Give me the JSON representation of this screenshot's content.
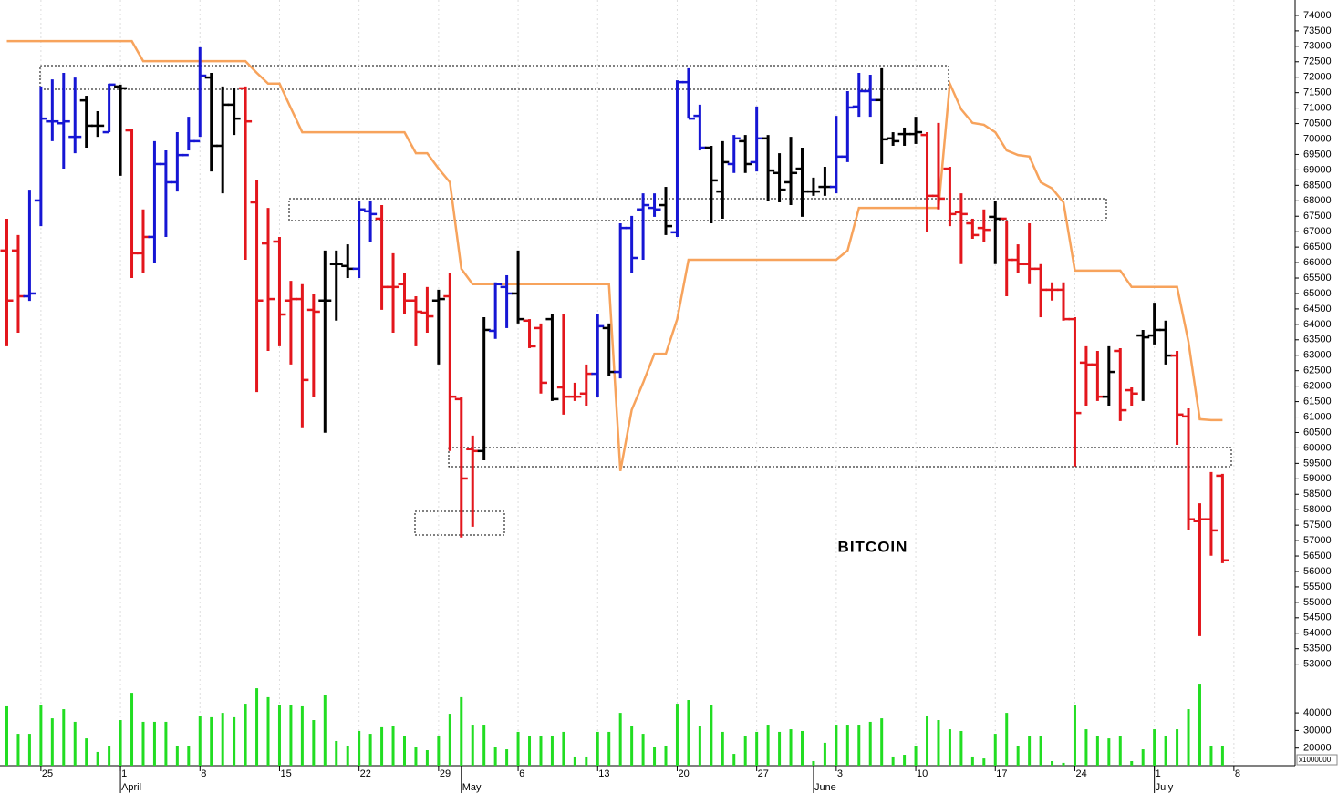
{
  "chart_data": {
    "type": "ohlc",
    "title": "BITCOIN",
    "categories": [
      null,
      null,
      null,
      "25",
      null,
      null,
      null,
      null,
      null,
      null,
      "1",
      null,
      null,
      null,
      null,
      null,
      null,
      "8",
      null,
      null,
      null,
      null,
      null,
      null,
      "15",
      null,
      null,
      null,
      null,
      null,
      null,
      "22",
      null,
      null,
      null,
      null,
      null,
      null,
      "29",
      null,
      null,
      null,
      null,
      null,
      null,
      "6",
      null,
      null,
      null,
      null,
      null,
      null,
      "13",
      null,
      null,
      null,
      null,
      null,
      null,
      "20",
      null,
      null,
      null,
      null,
      null,
      null,
      "27",
      null,
      null,
      null,
      null,
      null,
      null,
      "3",
      null,
      null,
      null,
      null,
      null,
      null,
      "10",
      null,
      null,
      null,
      null,
      null,
      null,
      "17",
      null,
      null,
      null,
      null,
      null,
      null,
      "24",
      null,
      null,
      null,
      null,
      null,
      null,
      "1",
      null,
      null,
      null,
      null,
      null,
      null,
      "8"
    ],
    "months": [
      {
        "label": "April",
        "index": 10
      },
      {
        "label": "May",
        "index": 40
      },
      {
        "label": "June",
        "index": 71
      },
      {
        "label": "July",
        "index": 101
      }
    ],
    "open": [
      66390,
      66390,
      64910,
      68010,
      70570,
      70510,
      70070,
      71250,
      70430,
      70220,
      71700,
      70280,
      66300,
      66830,
      69190,
      68600,
      69480,
      69930,
      71990,
      69780,
      71110,
      71640,
      67950,
      66620,
      66680,
      64770,
      64820,
      64470,
      64770,
      65950,
      65890,
      65800,
      67660,
      67420,
      65210,
      65300,
      64770,
      64380,
      64770,
      64910,
      61580,
      59960,
      59900,
      63790,
      65210,
      65000,
      64120,
      63880,
      64170,
      61960,
      61660,
      61760,
      62400,
      63880,
      62460,
      67120,
      67720,
      67770,
      67860,
      66980,
      71840,
      70750,
      69720,
      68300,
      69190,
      69930,
      69250,
      70020,
      68900,
      68600,
      69040,
      68300,
      68450,
      68450,
      69430,
      71050,
      71550,
      71260,
      70020,
      70160,
      70160,
      70130,
      68160,
      69040,
      67630,
      67270,
      67120,
      67480,
      67420,
      66090,
      65950,
      65800,
      65120,
      65120,
      64170,
      62760,
      62700,
      61660,
      63140,
      61870,
      63640,
      63640,
      63820,
      62990,
      61020,
      57630,
      57690,
      59100,
      null
    ],
    "high": [
      67420,
      66890,
      68360,
      71700,
      71930,
      72140,
      71990,
      71400,
      70900,
      71790,
      71760,
      70310,
      67720,
      69930,
      69630,
      70220,
      70720,
      72970,
      72140,
      71700,
      71640,
      71700,
      68660,
      67770,
      66830,
      65410,
      65300,
      65000,
      66390,
      66390,
      66590,
      68010,
      68010,
      67860,
      66300,
      65650,
      64910,
      65210,
      65120,
      65650,
      61660,
      60400,
      64230,
      65360,
      65590,
      66390,
      64170,
      64030,
      64320,
      64320,
      62110,
      62700,
      64320,
      64030,
      67270,
      67510,
      68240,
      68240,
      68450,
      71900,
      72290,
      71110,
      69780,
      69930,
      70130,
      70130,
      71050,
      70130,
      69540,
      70070,
      69720,
      68750,
      69100,
      70750,
      71550,
      72140,
      72080,
      72290,
      70220,
      70370,
      70720,
      70220,
      70520,
      69100,
      68240,
      67420,
      67720,
      68010,
      67360,
      66590,
      67270,
      65950,
      65360,
      65360,
      64230,
      63290,
      63140,
      63290,
      63230,
      61960,
      63820,
      64700,
      64120,
      63140,
      61280,
      58210,
      59220,
      59160,
      null
    ],
    "low": [
      63290,
      63730,
      64760,
      67180,
      69930,
      69040,
      69540,
      69720,
      70070,
      70220,
      68810,
      65500,
      65650,
      66000,
      66830,
      68300,
      69630,
      70070,
      68950,
      68240,
      70130,
      66090,
      61810,
      63140,
      63290,
      62700,
      60640,
      61660,
      60490,
      64120,
      65500,
      65500,
      66680,
      64470,
      63730,
      64320,
      63290,
      63730,
      62700,
      59900,
      57100,
      57450,
      59600,
      63530,
      63880,
      64030,
      63230,
      61760,
      61520,
      61080,
      61520,
      61370,
      61660,
      62340,
      62250,
      65650,
      66090,
      67480,
      66890,
      66830,
      70660,
      69630,
      67270,
      67420,
      68900,
      68900,
      68950,
      68010,
      67950,
      67860,
      67480,
      68160,
      68160,
      68240,
      69250,
      70720,
      70720,
      69190,
      69780,
      69780,
      69840,
      66980,
      67720,
      67180,
      65950,
      66770,
      66680,
      65950,
      64910,
      65650,
      65300,
      64230,
      64770,
      64120,
      59400,
      61370,
      61520,
      61370,
      60870,
      61370,
      61520,
      63350,
      62700,
      60100,
      57330,
      53910,
      56510,
      56270,
      null
    ],
    "close": [
      64770,
      64910,
      65000,
      70660,
      70570,
      70570,
      70070,
      70430,
      70430,
      71760,
      71640,
      66300,
      66830,
      69190,
      68600,
      69480,
      69930,
      72050,
      69780,
      71110,
      70660,
      70570,
      64770,
      64820,
      64320,
      64820,
      62200,
      64410,
      64770,
      65950,
      65800,
      67720,
      67570,
      65210,
      65210,
      64770,
      64410,
      64260,
      64820,
      61660,
      59010,
      59900,
      63820,
      65300,
      65000,
      64170,
      63290,
      62110,
      61580,
      61660,
      61660,
      62400,
      63940,
      62460,
      67120,
      66150,
      67860,
      67720,
      67180,
      71840,
      70660,
      69720,
      68660,
      69250,
      70020,
      69190,
      70020,
      68980,
      68360,
      68900,
      68300,
      68300,
      68450,
      69430,
      71020,
      71550,
      71260,
      69990,
      69930,
      70160,
      70220,
      68160,
      68070,
      67570,
      67570,
      66890,
      67060,
      67420,
      66090,
      65950,
      65800,
      65120,
      65120,
      64170,
      61130,
      62700,
      61660,
      62460,
      61220,
      61760,
      63580,
      63820,
      62990,
      61080,
      57690,
      57690,
      57330,
      56360,
      null
    ],
    "bar_colors": [
      "#e3161c",
      "#e3161c",
      "#1616d4",
      "#1616d4",
      "#1616d4",
      "#1616d4",
      "#1616d4",
      "#000000",
      "#000000",
      "#1616d4",
      "#000000",
      "#e3161c",
      "#e3161c",
      "#1616d4",
      "#1616d4",
      "#1616d4",
      "#1616d4",
      "#1616d4",
      "#000000",
      "#000000",
      "#000000",
      "#e3161c",
      "#e3161c",
      "#e3161c",
      "#e3161c",
      "#e3161c",
      "#e3161c",
      "#e3161c",
      "#000000",
      "#000000",
      "#000000",
      "#1616d4",
      "#1616d4",
      "#e3161c",
      "#e3161c",
      "#e3161c",
      "#e3161c",
      "#e3161c",
      "#000000",
      "#e3161c",
      "#e3161c",
      "#e3161c",
      "#000000",
      "#1616d4",
      "#1616d4",
      "#000000",
      "#e3161c",
      "#e3161c",
      "#000000",
      "#e3161c",
      "#e3161c",
      "#e3161c",
      "#1616d4",
      "#000000",
      "#1616d4",
      "#1616d4",
      "#1616d4",
      "#1616d4",
      "#000000",
      "#1616d4",
      "#1616d4",
      "#1616d4",
      "#000000",
      "#000000",
      "#1616d4",
      "#000000",
      "#1616d4",
      "#000000",
      "#000000",
      "#000000",
      "#000000",
      "#000000",
      "#000000",
      "#1616d4",
      "#1616d4",
      "#1616d4",
      "#1616d4",
      "#000000",
      "#000000",
      "#000000",
      "#000000",
      "#e3161c",
      "#e3161c",
      "#e3161c",
      "#e3161c",
      "#e3161c",
      "#e3161c",
      "#000000",
      "#e3161c",
      "#e3161c",
      "#e3161c",
      "#e3161c",
      "#e3161c",
      "#e3161c",
      "#e3161c",
      "#e3161c",
      "#e3161c",
      "#000000",
      "#e3161c",
      "#e3161c",
      "#000000",
      "#000000",
      "#000000",
      "#e3161c",
      "#e3161c",
      "#e3161c",
      "#e3161c",
      "#e3161c",
      null
    ],
    "stop_line": {
      "color": "#f7a35c",
      "values": [
        73170,
        73170,
        73170,
        73170,
        73170,
        73170,
        73170,
        73170,
        73170,
        73170,
        73170,
        73170,
        72520,
        72520,
        72520,
        72520,
        72520,
        72520,
        72520,
        72520,
        72520,
        72520,
        72140,
        71790,
        71790,
        71000,
        70220,
        70220,
        70220,
        70220,
        70220,
        70220,
        70220,
        70220,
        70220,
        70220,
        69540,
        69540,
        69040,
        68600,
        65800,
        65300,
        65300,
        65300,
        65300,
        65300,
        65300,
        65300,
        65300,
        65300,
        65300,
        65300,
        65300,
        65300,
        59250,
        61230,
        62110,
        63050,
        63050,
        64170,
        66090,
        66090,
        66090,
        66090,
        66090,
        66090,
        66090,
        66090,
        66090,
        66090,
        66090,
        66090,
        66090,
        66090,
        66390,
        67770,
        67770,
        67770,
        67770,
        67770,
        67770,
        67770,
        67770,
        71790,
        70960,
        70520,
        70460,
        70220,
        69630,
        69480,
        69430,
        68600,
        68400,
        67950,
        65740,
        65740,
        65740,
        65740,
        65740,
        65210,
        65210,
        65210,
        65210,
        65210,
        63440,
        60930,
        60900,
        60900,
        null
      ]
    },
    "ylim": [
      52500,
      74500
    ],
    "yticks": [
      53000,
      53500,
      54000,
      54500,
      55000,
      55500,
      56000,
      56500,
      57000,
      57500,
      58000,
      58500,
      59000,
      59500,
      60000,
      60500,
      61000,
      61500,
      62000,
      62500,
      63000,
      63500,
      64000,
      64500,
      65000,
      65500,
      66000,
      66500,
      67000,
      67500,
      68000,
      68500,
      69000,
      69500,
      70000,
      70500,
      71000,
      71500,
      72000,
      72500,
      73000,
      73500,
      74000
    ],
    "xgrid": true,
    "volume": {
      "color": "#22dd22",
      "ylim": [
        10000,
        60000
      ],
      "yticks": [
        20000,
        30000,
        40000
      ],
      "unit_label": "x1000000",
      "values": [
        43700,
        28100,
        28100,
        44700,
        36900,
        42100,
        34900,
        25500,
        17800,
        21400,
        35900,
        51400,
        34900,
        34900,
        34900,
        21400,
        21400,
        38000,
        37500,
        40000,
        37500,
        45200,
        54000,
        48900,
        44700,
        44700,
        43700,
        35900,
        50400,
        24000,
        21400,
        29700,
        28100,
        31800,
        32300,
        26600,
        20400,
        18800,
        26600,
        39500,
        48900,
        33300,
        33300,
        20400,
        19300,
        29200,
        27100,
        26600,
        27100,
        29200,
        15200,
        15200,
        29200,
        29200,
        40000,
        32300,
        28100,
        20400,
        21400,
        45200,
        47300,
        32300,
        44700,
        29200,
        16700,
        26600,
        29200,
        33300,
        29200,
        30700,
        29700,
        12600,
        23000,
        33300,
        33300,
        33300,
        34900,
        36900,
        15200,
        16200,
        21400,
        38500,
        35900,
        30700,
        29700,
        15200,
        14100,
        28100,
        40000,
        21400,
        26600,
        26600,
        12600,
        11600,
        44700,
        30700,
        26600,
        25500,
        26600,
        12600,
        19300,
        30700,
        26600,
        30700,
        42100,
        56600,
        21400,
        21400,
        null
      ]
    }
  }
}
